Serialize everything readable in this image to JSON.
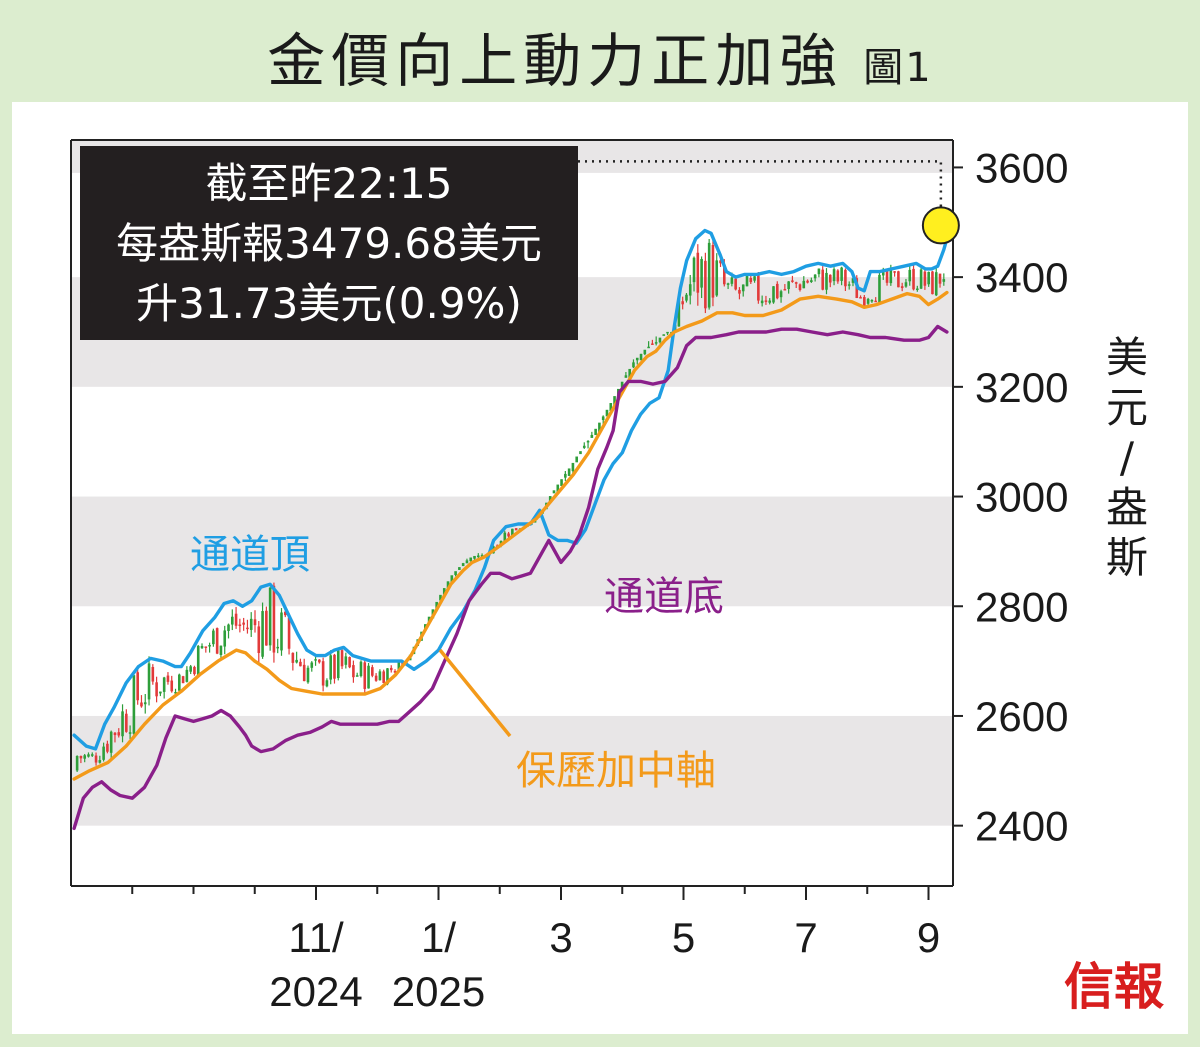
{
  "header": {
    "title": "金價向上動力正加強",
    "figure_label": "圖1"
  },
  "annotation": {
    "line1": "截至昨22:15",
    "line2": "每盎斯報3479.68美元",
    "line3": "升31.73美元(0.9%)"
  },
  "labels": {
    "upper": "通道頂",
    "lower": "通道底",
    "middle": "保歷加中軸"
  },
  "publisher": "信報",
  "colors": {
    "upper": "#1f9ee3",
    "middle": "#f39a1a",
    "lower": "#8a1f8a",
    "candle_up": "#2e9e3a",
    "candle_down": "#e23a3a",
    "band": "#e8e6e7",
    "marker": "#ffef1f"
  },
  "chart_data": {
    "type": "line",
    "ylabel": "美元/盎斯",
    "ylim": [
      2290,
      3650
    ],
    "yticks": [
      2400,
      2600,
      2800,
      3000,
      3200,
      3400,
      3600
    ],
    "xticks": [
      {
        "label": "11/",
        "sub": "2024",
        "t": 4
      },
      {
        "label": "1/",
        "sub": "2025",
        "t": 6
      },
      {
        "label": "3",
        "sub": "",
        "t": 8
      },
      {
        "label": "5",
        "sub": "",
        "t": 10
      },
      {
        "label": "7",
        "sub": "",
        "t": 12
      },
      {
        "label": "9",
        "sub": "",
        "t": 14
      }
    ],
    "minor_ticks": [
      1,
      2,
      3,
      4,
      5,
      6,
      7,
      8,
      9,
      10,
      11,
      12,
      13,
      14
    ],
    "xrange": [
      0.05,
      14.3
    ],
    "series": [
      {
        "key": "upper",
        "name": "通道頂",
        "points": [
          [
            0.05,
            2565
          ],
          [
            0.25,
            2545
          ],
          [
            0.4,
            2540
          ],
          [
            0.55,
            2585
          ],
          [
            0.7,
            2615
          ],
          [
            0.9,
            2660
          ],
          [
            1.1,
            2690
          ],
          [
            1.3,
            2705
          ],
          [
            1.5,
            2700
          ],
          [
            1.7,
            2690
          ],
          [
            1.8,
            2690
          ],
          [
            1.95,
            2715
          ],
          [
            2.15,
            2755
          ],
          [
            2.35,
            2780
          ],
          [
            2.5,
            2805
          ],
          [
            2.65,
            2810
          ],
          [
            2.8,
            2800
          ],
          [
            2.95,
            2810
          ],
          [
            3.1,
            2835
          ],
          [
            3.25,
            2840
          ],
          [
            3.4,
            2820
          ],
          [
            3.55,
            2785
          ],
          [
            3.7,
            2750
          ],
          [
            3.85,
            2720
          ],
          [
            4.0,
            2710
          ],
          [
            4.15,
            2710
          ],
          [
            4.3,
            2720
          ],
          [
            4.45,
            2725
          ],
          [
            4.6,
            2710
          ],
          [
            4.75,
            2705
          ],
          [
            4.9,
            2700
          ],
          [
            5.2,
            2700
          ],
          [
            5.4,
            2700
          ],
          [
            5.6,
            2685
          ],
          [
            5.8,
            2700
          ],
          [
            6.0,
            2720
          ],
          [
            6.2,
            2760
          ],
          [
            6.4,
            2790
          ],
          [
            6.6,
            2830
          ],
          [
            6.75,
            2870
          ],
          [
            6.9,
            2920
          ],
          [
            7.1,
            2945
          ],
          [
            7.3,
            2950
          ],
          [
            7.5,
            2950
          ],
          [
            7.65,
            2975
          ],
          [
            7.8,
            2930
          ],
          [
            7.95,
            2920
          ],
          [
            8.1,
            2920
          ],
          [
            8.25,
            2915
          ],
          [
            8.4,
            2940
          ],
          [
            8.55,
            2985
          ],
          [
            8.7,
            3030
          ],
          [
            8.85,
            3060
          ],
          [
            9.0,
            3080
          ],
          [
            9.15,
            3120
          ],
          [
            9.3,
            3150
          ],
          [
            9.45,
            3170
          ],
          [
            9.6,
            3180
          ],
          [
            9.75,
            3230
          ],
          [
            9.85,
            3310
          ],
          [
            9.95,
            3380
          ],
          [
            10.05,
            3430
          ],
          [
            10.2,
            3470
          ],
          [
            10.35,
            3485
          ],
          [
            10.45,
            3480
          ],
          [
            10.6,
            3440
          ],
          [
            10.7,
            3410
          ],
          [
            10.85,
            3400
          ],
          [
            11.0,
            3405
          ],
          [
            11.2,
            3405
          ],
          [
            11.4,
            3410
          ],
          [
            11.6,
            3405
          ],
          [
            11.8,
            3410
          ],
          [
            12.0,
            3420
          ],
          [
            12.2,
            3425
          ],
          [
            12.4,
            3420
          ],
          [
            12.6,
            3425
          ],
          [
            12.75,
            3410
          ],
          [
            12.85,
            3380
          ],
          [
            12.95,
            3375
          ],
          [
            13.05,
            3410
          ],
          [
            13.2,
            3410
          ],
          [
            13.4,
            3415
          ],
          [
            13.6,
            3420
          ],
          [
            13.8,
            3425
          ],
          [
            13.95,
            3415
          ],
          [
            14.05,
            3415
          ],
          [
            14.15,
            3420
          ],
          [
            14.25,
            3450
          ],
          [
            14.3,
            3470
          ]
        ]
      },
      {
        "key": "middle",
        "name": "保歷加中軸",
        "points": [
          [
            0.05,
            2485
          ],
          [
            0.3,
            2500
          ],
          [
            0.6,
            2515
          ],
          [
            0.9,
            2545
          ],
          [
            1.2,
            2585
          ],
          [
            1.5,
            2620
          ],
          [
            1.8,
            2645
          ],
          [
            2.1,
            2675
          ],
          [
            2.4,
            2700
          ],
          [
            2.7,
            2720
          ],
          [
            2.85,
            2715
          ],
          [
            3.0,
            2700
          ],
          [
            3.2,
            2685
          ],
          [
            3.4,
            2665
          ],
          [
            3.6,
            2650
          ],
          [
            3.85,
            2645
          ],
          [
            4.1,
            2640
          ],
          [
            4.4,
            2640
          ],
          [
            4.8,
            2640
          ],
          [
            5.05,
            2650
          ],
          [
            5.3,
            2675
          ],
          [
            5.55,
            2710
          ],
          [
            5.8,
            2760
          ],
          [
            6.0,
            2800
          ],
          [
            6.2,
            2840
          ],
          [
            6.4,
            2865
          ],
          [
            6.55,
            2880
          ],
          [
            6.75,
            2890
          ],
          [
            7.0,
            2910
          ],
          [
            7.3,
            2935
          ],
          [
            7.6,
            2960
          ],
          [
            7.9,
            3000
          ],
          [
            8.2,
            3040
          ],
          [
            8.45,
            3080
          ],
          [
            8.7,
            3130
          ],
          [
            8.95,
            3180
          ],
          [
            9.2,
            3230
          ],
          [
            9.4,
            3255
          ],
          [
            9.55,
            3265
          ],
          [
            9.7,
            3285
          ],
          [
            9.85,
            3300
          ],
          [
            10.05,
            3310
          ],
          [
            10.3,
            3320
          ],
          [
            10.55,
            3335
          ],
          [
            10.8,
            3335
          ],
          [
            11.0,
            3330
          ],
          [
            11.3,
            3330
          ],
          [
            11.6,
            3340
          ],
          [
            11.9,
            3360
          ],
          [
            12.2,
            3365
          ],
          [
            12.5,
            3360
          ],
          [
            12.75,
            3355
          ],
          [
            12.95,
            3345
          ],
          [
            13.15,
            3350
          ],
          [
            13.4,
            3360
          ],
          [
            13.65,
            3370
          ],
          [
            13.85,
            3365
          ],
          [
            14.0,
            3350
          ],
          [
            14.15,
            3360
          ],
          [
            14.3,
            3372
          ]
        ]
      },
      {
        "key": "lower",
        "name": "通道底",
        "points": [
          [
            0.05,
            2395
          ],
          [
            0.2,
            2450
          ],
          [
            0.35,
            2470
          ],
          [
            0.5,
            2480
          ],
          [
            0.65,
            2465
          ],
          [
            0.8,
            2455
          ],
          [
            1.0,
            2450
          ],
          [
            1.2,
            2470
          ],
          [
            1.4,
            2510
          ],
          [
            1.55,
            2560
          ],
          [
            1.7,
            2600
          ],
          [
            1.85,
            2595
          ],
          [
            2.0,
            2590
          ],
          [
            2.15,
            2595
          ],
          [
            2.3,
            2600
          ],
          [
            2.45,
            2610
          ],
          [
            2.6,
            2600
          ],
          [
            2.75,
            2580
          ],
          [
            2.85,
            2565
          ],
          [
            2.95,
            2545
          ],
          [
            3.1,
            2535
          ],
          [
            3.3,
            2540
          ],
          [
            3.5,
            2555
          ],
          [
            3.7,
            2565
          ],
          [
            3.9,
            2570
          ],
          [
            4.1,
            2580
          ],
          [
            4.25,
            2590
          ],
          [
            4.4,
            2585
          ],
          [
            4.6,
            2585
          ],
          [
            4.8,
            2585
          ],
          [
            5.0,
            2585
          ],
          [
            5.2,
            2590
          ],
          [
            5.35,
            2590
          ],
          [
            5.5,
            2605
          ],
          [
            5.7,
            2625
          ],
          [
            5.9,
            2650
          ],
          [
            6.1,
            2700
          ],
          [
            6.3,
            2750
          ],
          [
            6.5,
            2810
          ],
          [
            6.7,
            2840
          ],
          [
            6.85,
            2860
          ],
          [
            7.0,
            2860
          ],
          [
            7.2,
            2850
          ],
          [
            7.35,
            2855
          ],
          [
            7.5,
            2860
          ],
          [
            7.7,
            2900
          ],
          [
            7.8,
            2920
          ],
          [
            7.9,
            2900
          ],
          [
            8.0,
            2880
          ],
          [
            8.15,
            2900
          ],
          [
            8.3,
            2930
          ],
          [
            8.45,
            2980
          ],
          [
            8.6,
            3050
          ],
          [
            8.75,
            3090
          ],
          [
            8.85,
            3120
          ],
          [
            8.95,
            3190
          ],
          [
            9.1,
            3210
          ],
          [
            9.3,
            3210
          ],
          [
            9.5,
            3205
          ],
          [
            9.7,
            3210
          ],
          [
            9.9,
            3235
          ],
          [
            10.05,
            3275
          ],
          [
            10.2,
            3290
          ],
          [
            10.45,
            3290
          ],
          [
            10.7,
            3295
          ],
          [
            10.9,
            3300
          ],
          [
            11.1,
            3300
          ],
          [
            11.35,
            3300
          ],
          [
            11.6,
            3305
          ],
          [
            11.85,
            3305
          ],
          [
            12.1,
            3300
          ],
          [
            12.35,
            3295
          ],
          [
            12.6,
            3300
          ],
          [
            12.85,
            3295
          ],
          [
            13.05,
            3290
          ],
          [
            13.3,
            3290
          ],
          [
            13.6,
            3285
          ],
          [
            13.85,
            3285
          ],
          [
            14.0,
            3290
          ],
          [
            14.15,
            3310
          ],
          [
            14.3,
            3300
          ]
        ]
      }
    ],
    "latest": {
      "t": 14.3,
      "value": 3479.68
    }
  }
}
